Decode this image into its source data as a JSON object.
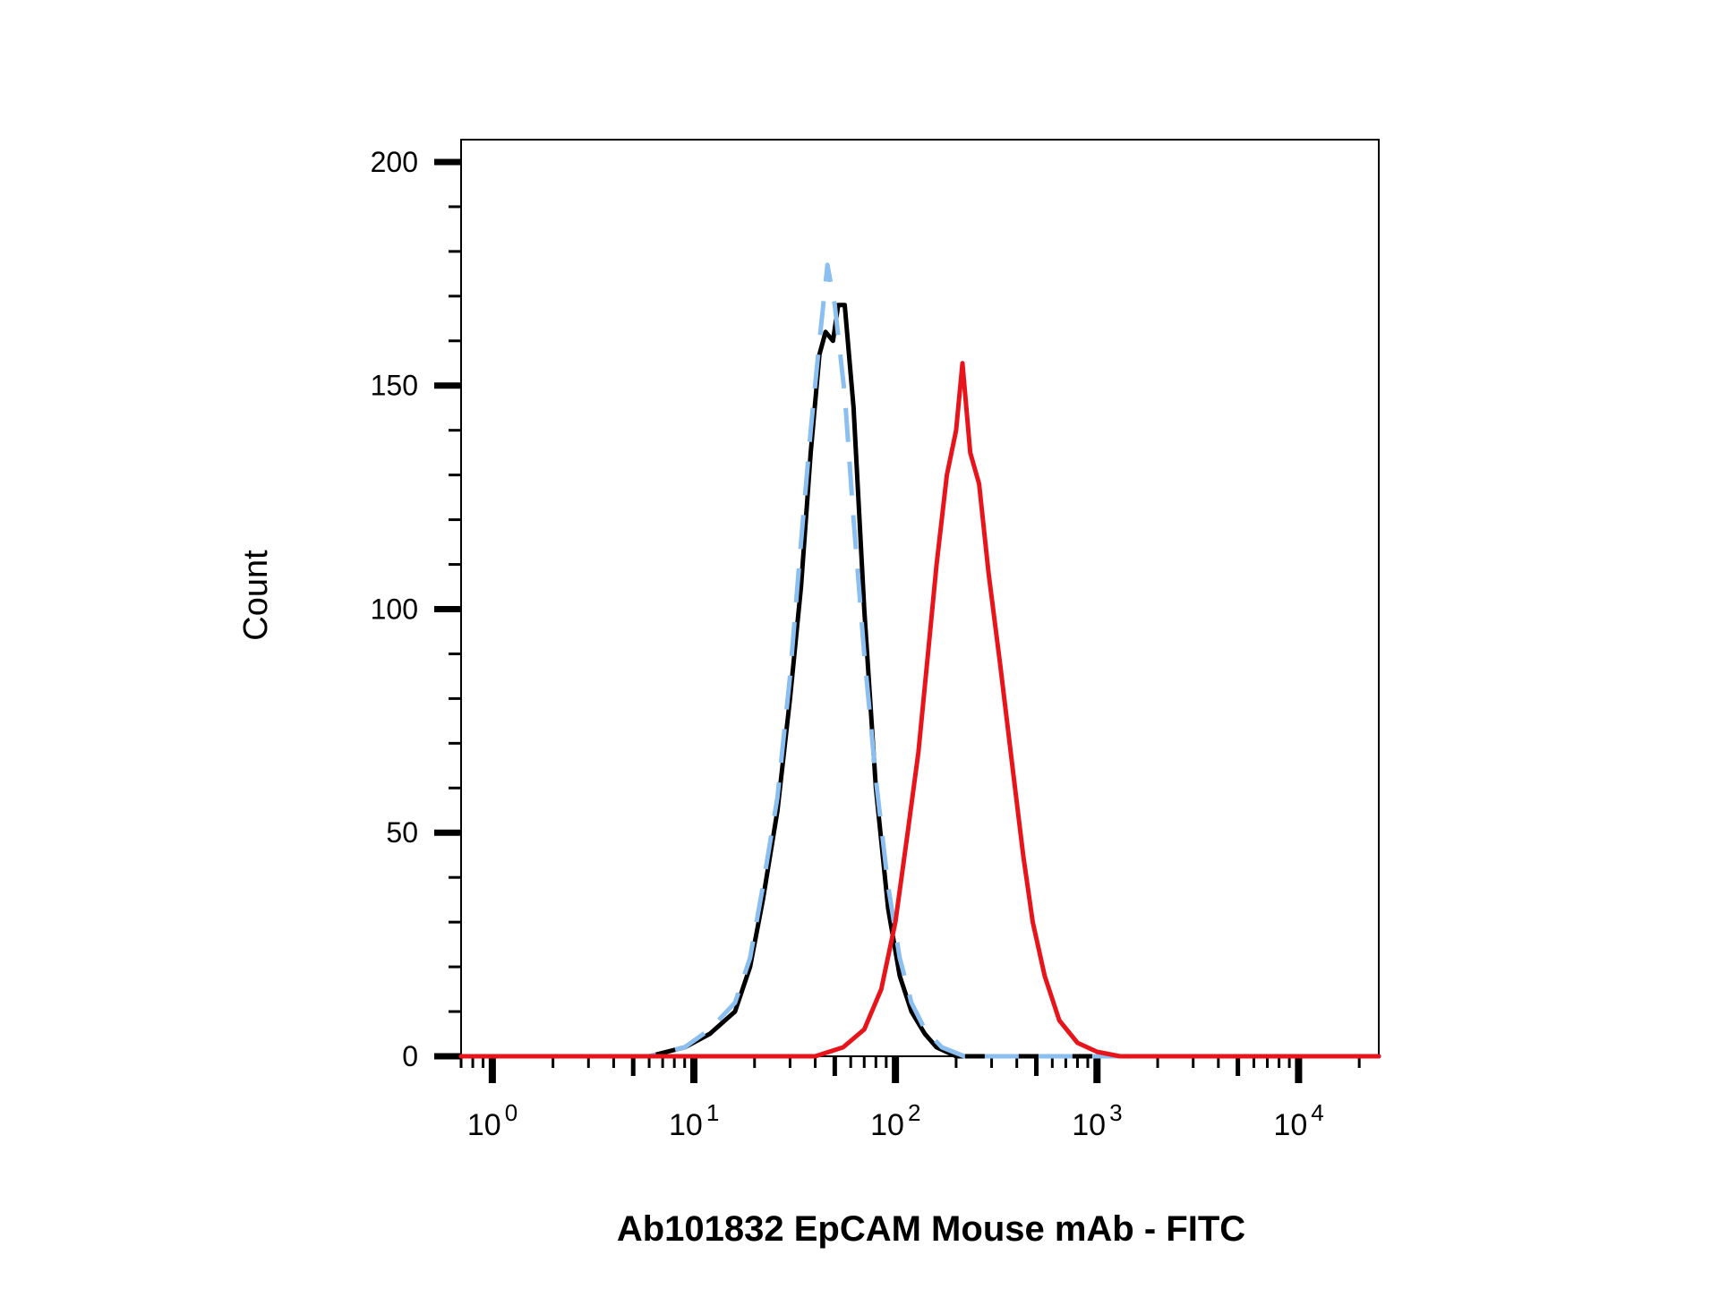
{
  "chart_data": {
    "type": "line",
    "title": "",
    "xlabel": "Ab101832 EpCAM Mouse mAb - FITC",
    "ylabel": "Count",
    "x_scale": "log",
    "xlim": [
      0.7,
      25000
    ],
    "ylim": [
      0,
      205
    ],
    "grid": false,
    "legend": "none",
    "y_ticks": [
      "0",
      "50",
      "100",
      "150",
      "200"
    ],
    "y_tick_values": [
      0,
      50,
      100,
      150,
      200
    ],
    "x_ticks": [
      {
        "base": "10",
        "exp": "0",
        "value": 1
      },
      {
        "base": "10",
        "exp": "1",
        "value": 10
      },
      {
        "base": "10",
        "exp": "2",
        "value": 100
      },
      {
        "base": "10",
        "exp": "3",
        "value": 1000
      },
      {
        "base": "10",
        "exp": "4",
        "value": 10000
      }
    ],
    "series": [
      {
        "color": "#000000",
        "style": "solid",
        "points": [
          [
            0.7,
            0
          ],
          [
            6,
            0
          ],
          [
            9,
            2
          ],
          [
            12,
            5
          ],
          [
            16,
            10
          ],
          [
            19,
            20
          ],
          [
            22,
            35
          ],
          [
            26,
            55
          ],
          [
            30,
            80
          ],
          [
            34,
            105
          ],
          [
            38,
            135
          ],
          [
            42,
            157
          ],
          [
            45,
            162
          ],
          [
            49,
            160
          ],
          [
            52,
            168
          ],
          [
            56,
            168
          ],
          [
            62,
            145
          ],
          [
            70,
            100
          ],
          [
            80,
            60
          ],
          [
            92,
            33
          ],
          [
            105,
            18
          ],
          [
            120,
            10
          ],
          [
            140,
            5
          ],
          [
            160,
            2
          ],
          [
            200,
            0
          ],
          [
            25000,
            0
          ]
        ]
      },
      {
        "color": "#8BBFF0",
        "style": "dashed",
        "points": [
          [
            0.7,
            0
          ],
          [
            6,
            0
          ],
          [
            9,
            2
          ],
          [
            12,
            6
          ],
          [
            16,
            12
          ],
          [
            19,
            22
          ],
          [
            22,
            38
          ],
          [
            26,
            58
          ],
          [
            30,
            85
          ],
          [
            34,
            115
          ],
          [
            38,
            140
          ],
          [
            42,
            160
          ],
          [
            46,
            177
          ],
          [
            50,
            168
          ],
          [
            56,
            148
          ],
          [
            62,
            120
          ],
          [
            70,
            90
          ],
          [
            80,
            62
          ],
          [
            92,
            38
          ],
          [
            105,
            22
          ],
          [
            120,
            12
          ],
          [
            140,
            6
          ],
          [
            170,
            2
          ],
          [
            220,
            0
          ],
          [
            25000,
            0
          ]
        ]
      },
      {
        "color": "#E8141B",
        "style": "solid",
        "points": [
          [
            0.7,
            0
          ],
          [
            40,
            0
          ],
          [
            55,
            2
          ],
          [
            70,
            6
          ],
          [
            85,
            15
          ],
          [
            100,
            30
          ],
          [
            115,
            50
          ],
          [
            130,
            68
          ],
          [
            145,
            90
          ],
          [
            160,
            110
          ],
          [
            180,
            130
          ],
          [
            200,
            140
          ],
          [
            215,
            155
          ],
          [
            235,
            135
          ],
          [
            260,
            128
          ],
          [
            290,
            108
          ],
          [
            330,
            88
          ],
          [
            380,
            65
          ],
          [
            430,
            45
          ],
          [
            480,
            30
          ],
          [
            550,
            18
          ],
          [
            650,
            8
          ],
          [
            800,
            3
          ],
          [
            1000,
            1
          ],
          [
            1300,
            0
          ],
          [
            25000,
            0
          ]
        ]
      }
    ]
  }
}
